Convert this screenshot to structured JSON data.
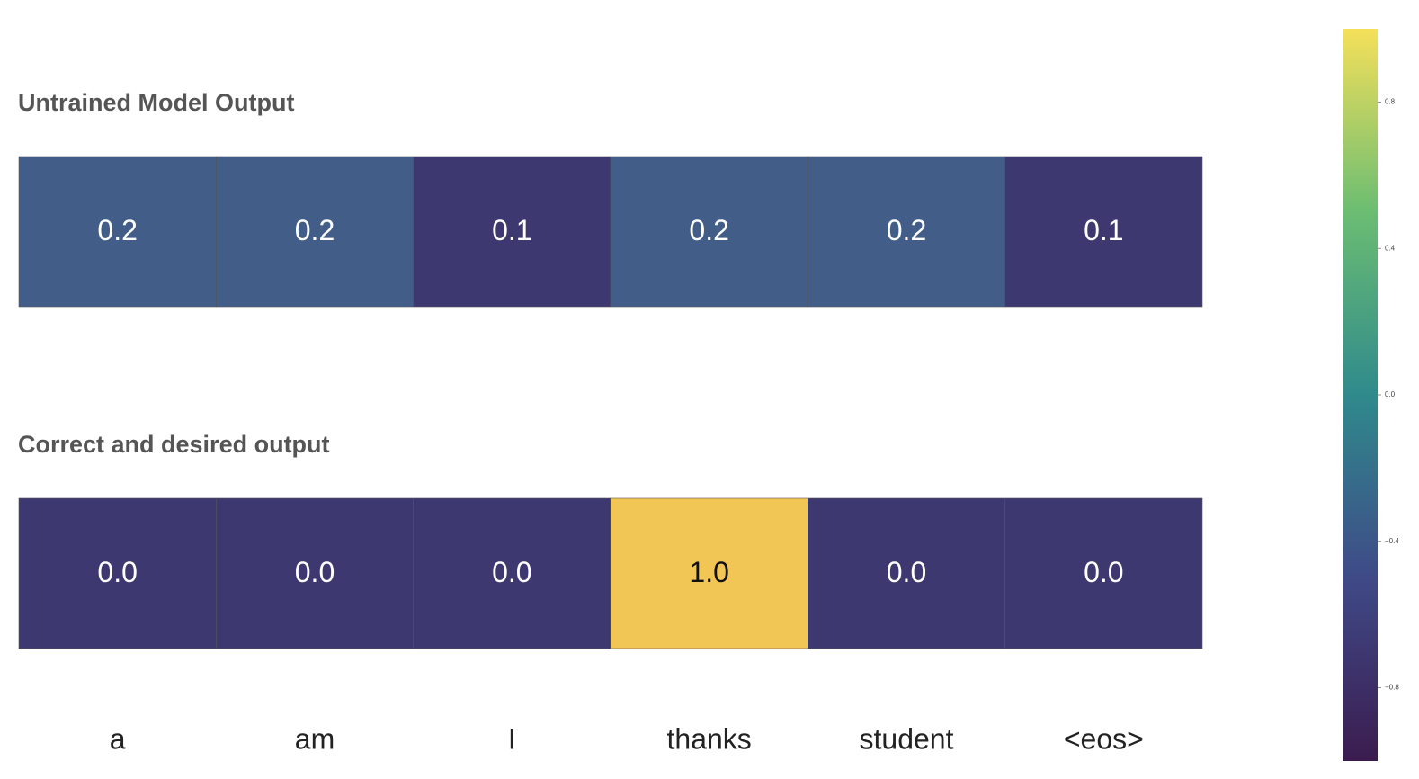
{
  "chart_data": [
    {
      "type": "heatmap",
      "title": "Untrained Model Output",
      "values": [
        0.2,
        0.2,
        0.1,
        0.2,
        0.2,
        0.1
      ],
      "value_labels": [
        "0.2",
        "0.2",
        "0.1",
        "0.2",
        "0.2",
        "0.1"
      ],
      "colors": [
        "#425e88",
        "#425e88",
        "#3e3871",
        "#425e88",
        "#425e88",
        "#3e3871"
      ]
    },
    {
      "type": "heatmap",
      "title": "Correct and desired output",
      "categories": [
        "a",
        "am",
        "I",
        "thanks",
        "student",
        "<eos>"
      ],
      "values": [
        0,
        0,
        0,
        1,
        0,
        0
      ],
      "value_labels": [
        "0.0",
        "0.0",
        "0.0",
        "1.0",
        "0.0",
        "0.0"
      ],
      "colors": [
        "#3e3871",
        "#3e3871",
        "#3e3871",
        "#f2c655",
        "#3e3871",
        "#3e3871"
      ]
    },
    {
      "type": "colorbar",
      "ylim": [
        -1,
        1
      ],
      "yticks": [
        0.8,
        0.4,
        {
          "value": 0,
          "label": "0.0"
        },
        {
          "value": -0.4,
          "label": "−0.4"
        },
        {
          "value": -0.8,
          "label": "−0.8"
        }
      ],
      "colors": [
        "#3b1c4f",
        "#3f4a87",
        "#2f8a8c",
        "#6bbd72",
        "#f5e05a"
      ]
    }
  ]
}
